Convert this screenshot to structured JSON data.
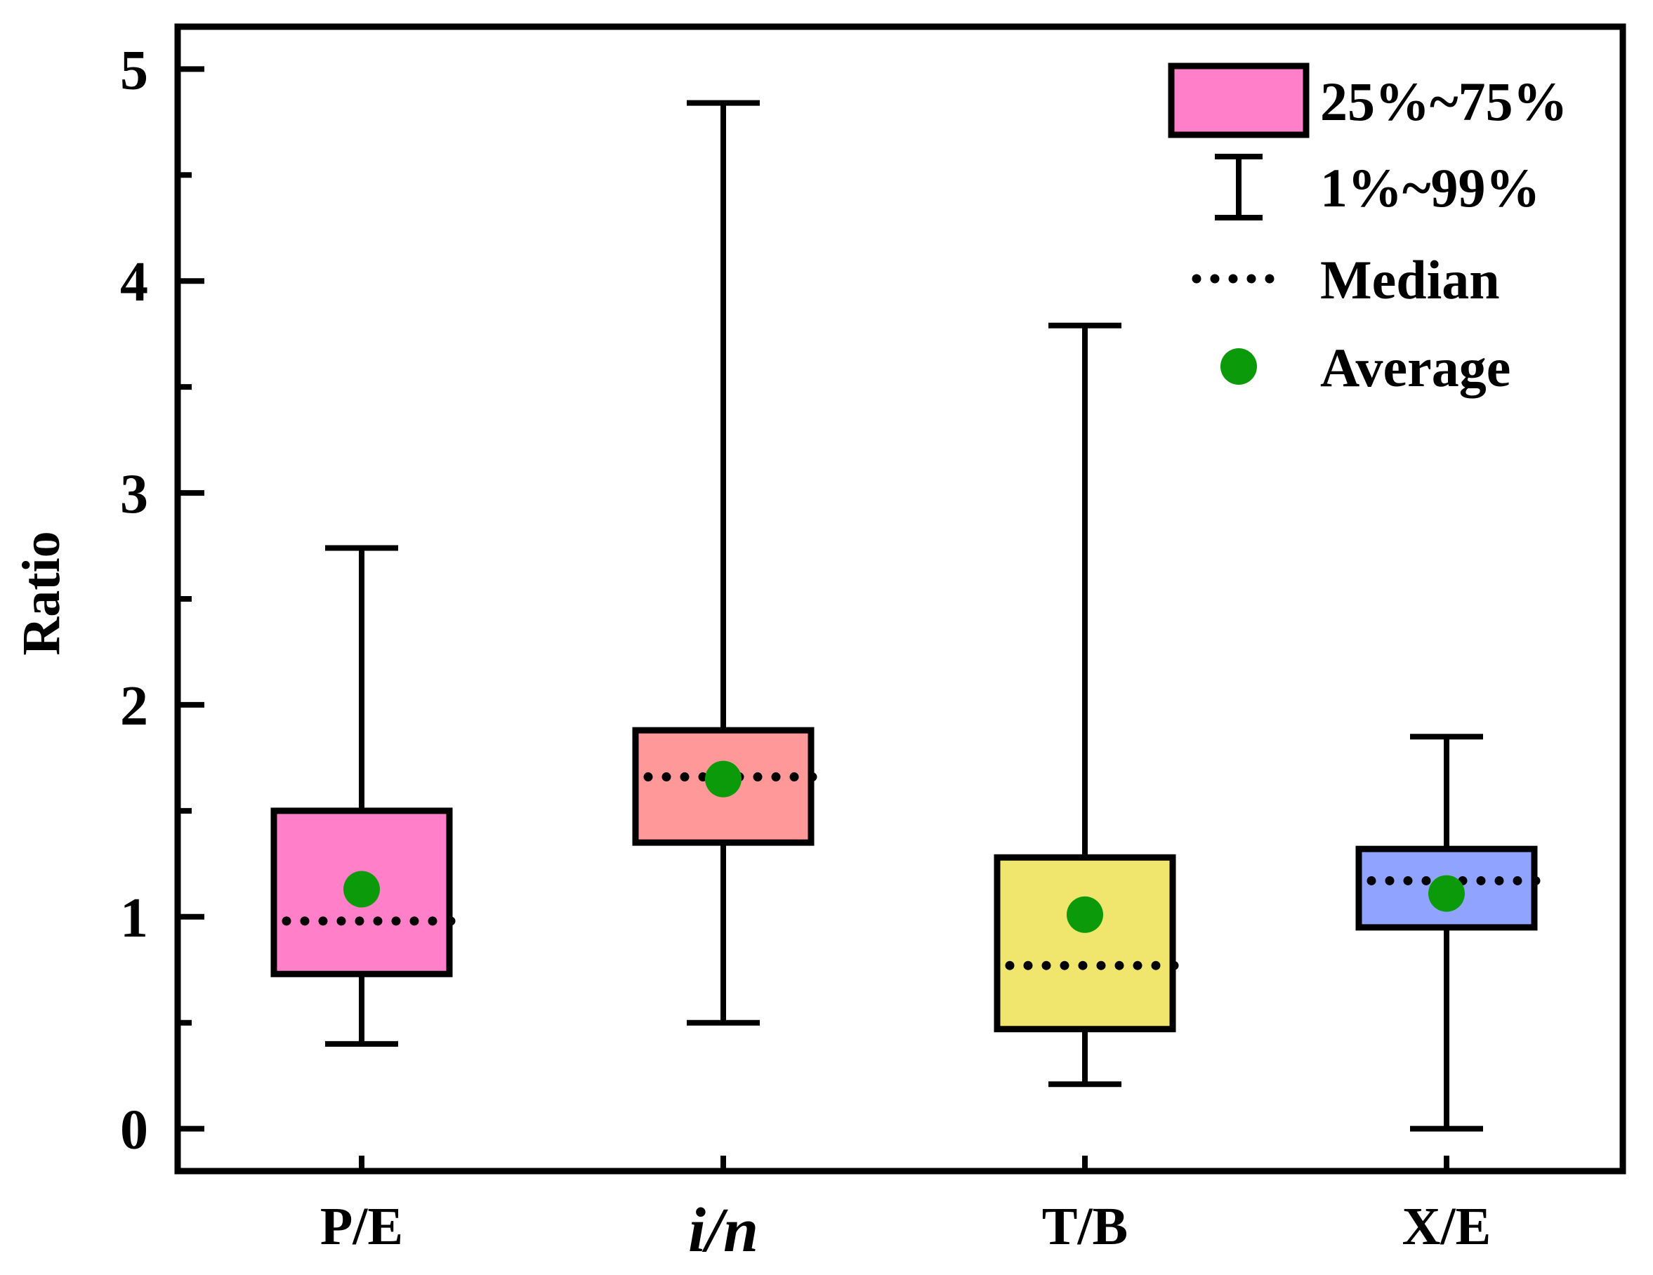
{
  "chart_data": {
    "type": "box",
    "ylabel": "Ratio",
    "xlabel": "",
    "ylim": [
      -0.2,
      5.2
    ],
    "yticks": [
      0,
      1,
      2,
      3,
      4,
      5
    ],
    "ytick_labels": [
      "0",
      "1",
      "2",
      "3",
      "4",
      "5"
    ],
    "categories": [
      "P/E",
      "i/n",
      "T/B",
      "X/E"
    ],
    "category_italic": [
      false,
      true,
      false,
      false
    ],
    "series": [
      {
        "name": "P/E",
        "whisker_low": 0.4,
        "q1": 0.73,
        "median": 0.98,
        "q3": 1.5,
        "whisker_high": 2.74,
        "mean": 1.13,
        "color": "#ff80c8"
      },
      {
        "name": "i/n",
        "whisker_low": 0.5,
        "q1": 1.35,
        "median": 1.66,
        "q3": 1.88,
        "whisker_high": 4.84,
        "mean": 1.65,
        "color": "#ff9999"
      },
      {
        "name": "T/B",
        "whisker_low": 0.21,
        "q1": 0.47,
        "median": 0.77,
        "q3": 1.28,
        "whisker_high": 3.79,
        "mean": 1.01,
        "color": "#f0e66e"
      },
      {
        "name": "X/E",
        "whisker_low": 0.0,
        "q1": 0.95,
        "median": 1.17,
        "q3": 1.32,
        "whisker_high": 1.85,
        "mean": 1.11,
        "color": "#8fa3ff"
      }
    ],
    "legend": {
      "position": "top-right",
      "entries": [
        {
          "label": "25%~75%",
          "kind": "box"
        },
        {
          "label": "1%~99%",
          "kind": "whisker"
        },
        {
          "label": "Median",
          "kind": "median"
        },
        {
          "label": "Average",
          "kind": "mean"
        }
      ]
    },
    "colors": {
      "legend_box": "#ff80c8",
      "mean_dot": "#0a9a0a",
      "line": "#000000"
    }
  }
}
